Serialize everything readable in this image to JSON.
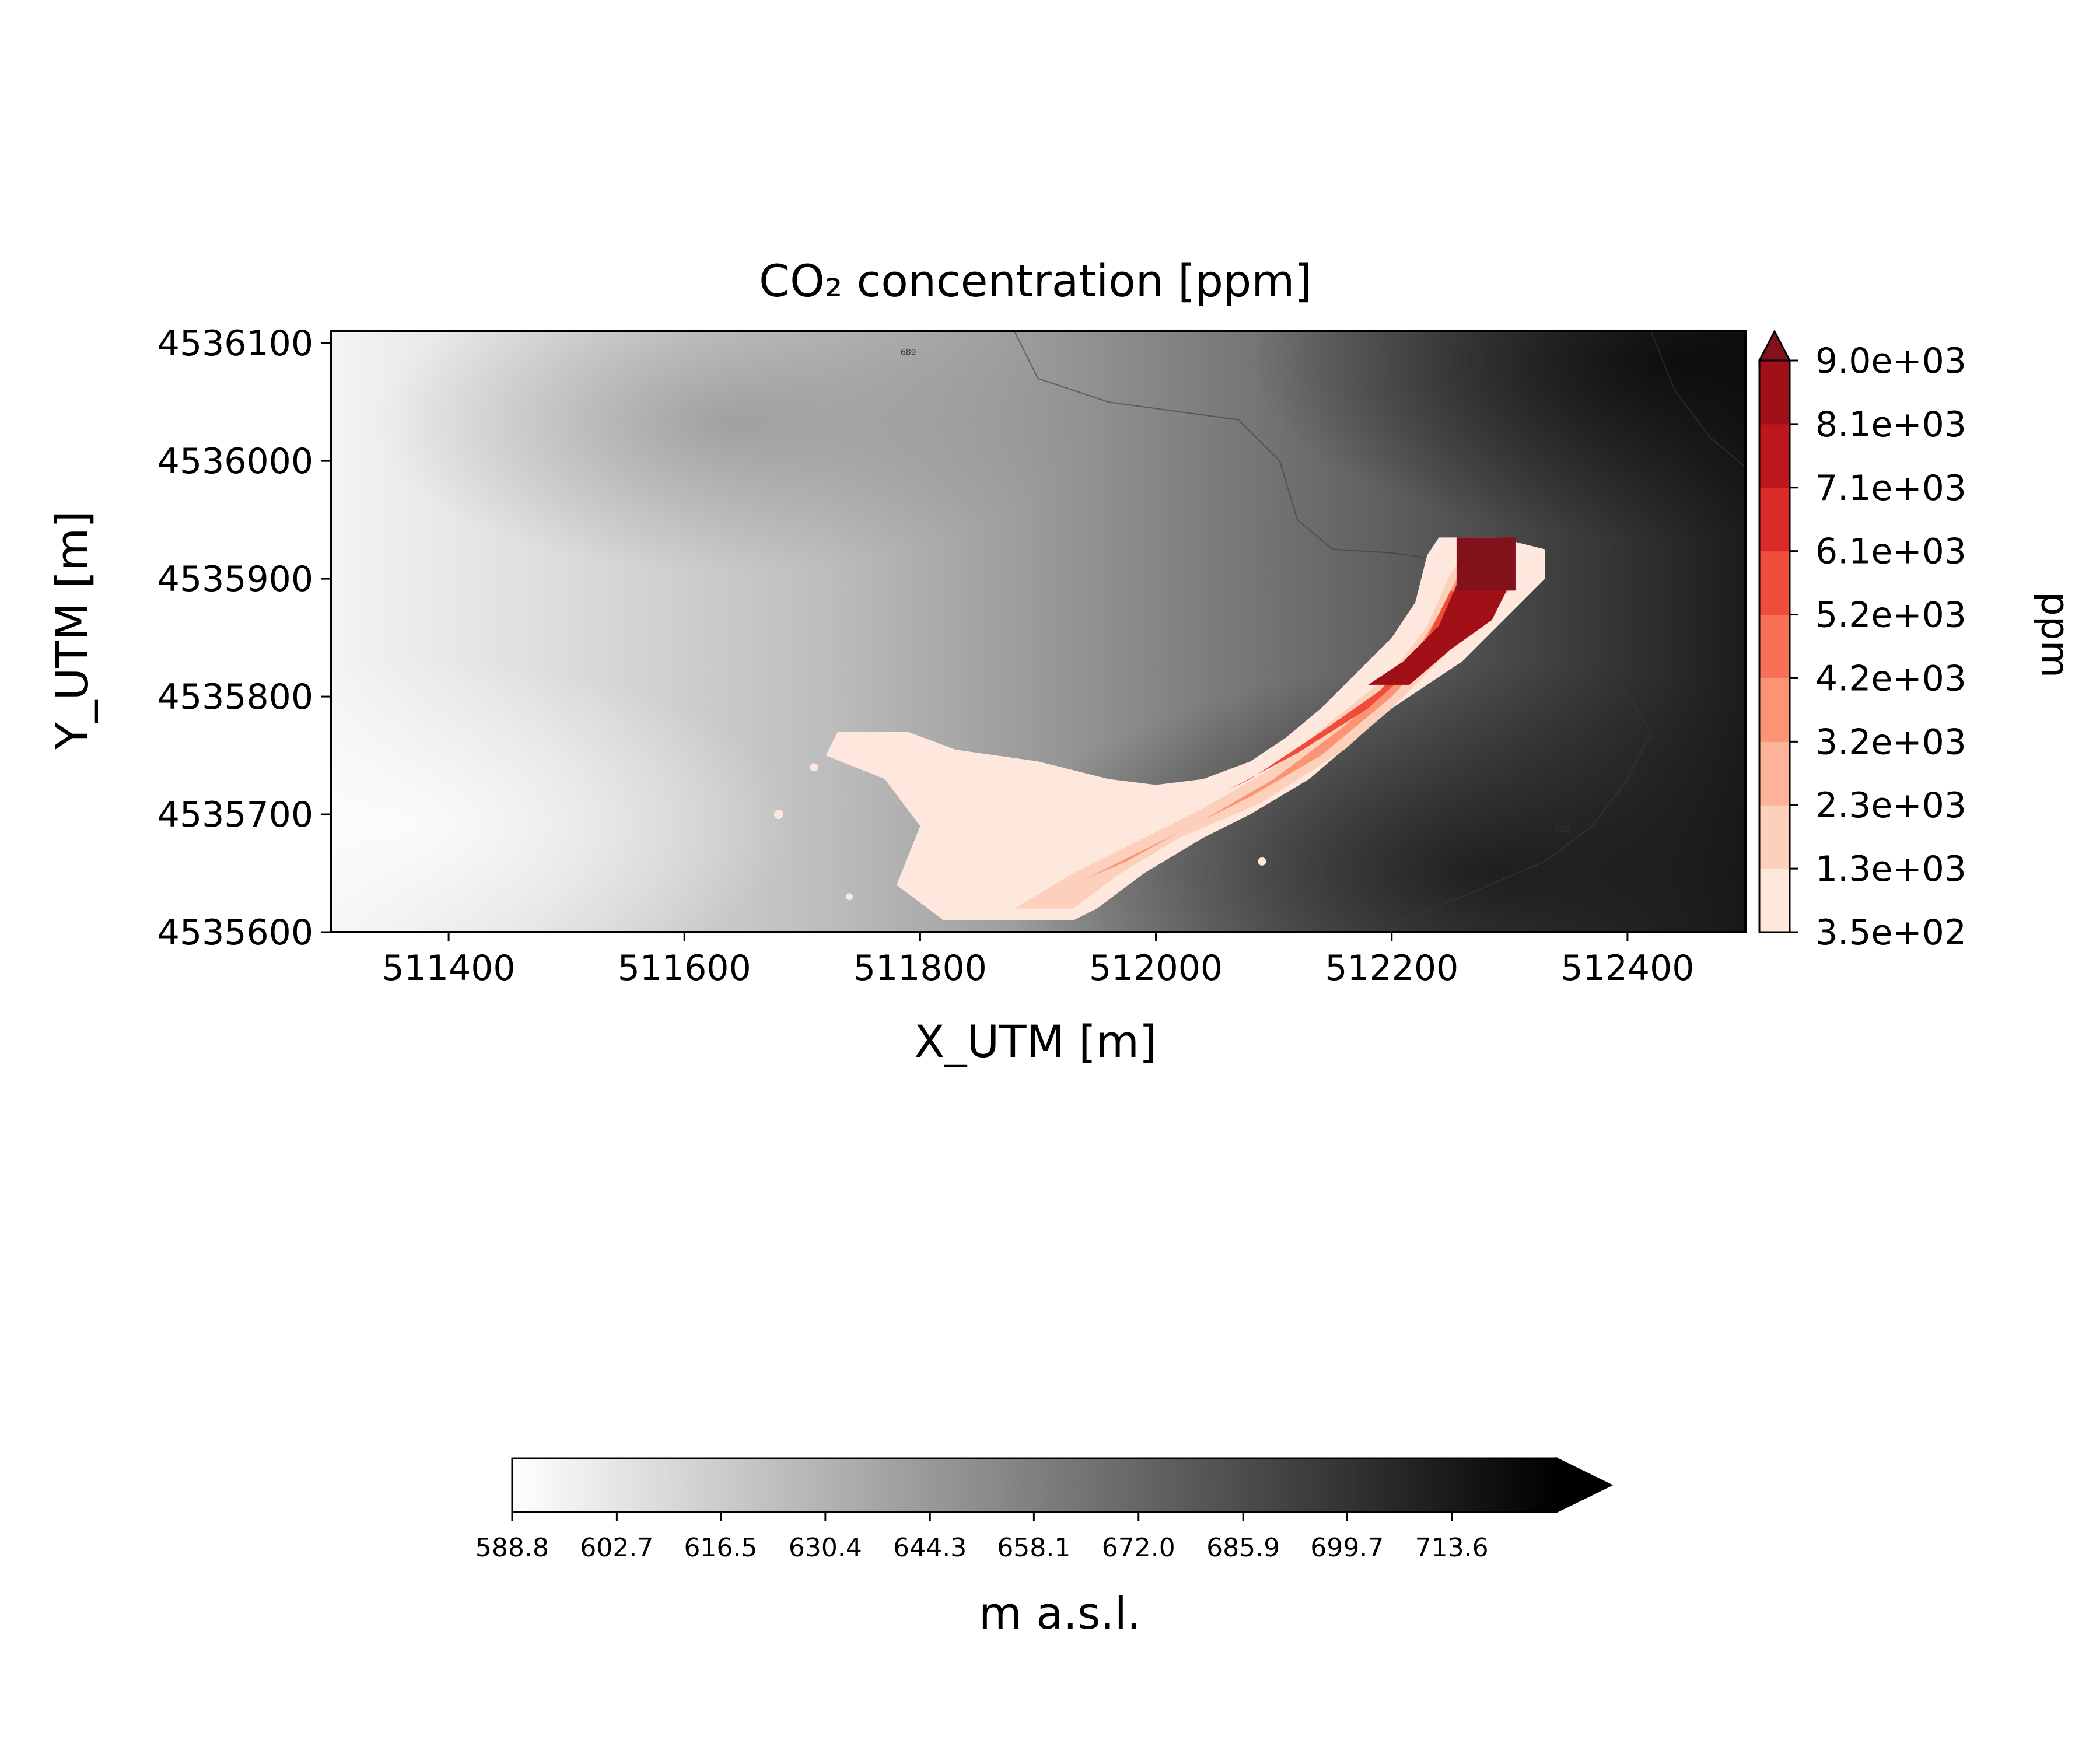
{
  "chart_data": {
    "type": "heatmap",
    "title": "CO₂ concentration [ppm]",
    "xlabel": "X_UTM [m]",
    "ylabel": "Y_UTM [m]",
    "xlim": [
      511300,
      512500
    ],
    "ylim": [
      4535600,
      4536110
    ],
    "x_ticks": [
      511400,
      511600,
      511800,
      512000,
      512200,
      512400
    ],
    "x_tick_labels": [
      "511400",
      "511600",
      "511800",
      "512000",
      "512200",
      "512400"
    ],
    "y_ticks": [
      4535600,
      4535700,
      4535800,
      4535900,
      4536000,
      4536100
    ],
    "y_tick_labels": [
      "4535600",
      "4535700",
      "4535800",
      "4535900",
      "4536000",
      "4536100"
    ],
    "grid": false,
    "contour_labels": [
      {
        "text": "689",
        "x": 511790,
        "y": 4536090
      },
      {
        "text": "689",
        "x": 512345,
        "y": 4535685
      }
    ],
    "co2_colorbar": {
      "label": "ppm",
      "levels": [
        350,
        1300,
        2300,
        3200,
        4200,
        5200,
        6100,
        7100,
        8100,
        9000
      ],
      "tick_labels": [
        "3.5e+02",
        "1.3e+03",
        "2.3e+03",
        "3.2e+03",
        "4.2e+03",
        "5.2e+03",
        "6.1e+03",
        "7.1e+03",
        "8.1e+03",
        "9.0e+03"
      ],
      "colors": [
        "#fee8de",
        "#fdd0bc",
        "#fcb398",
        "#fb9475",
        "#f87156",
        "#ef4c3a",
        "#db2b26",
        "#bd161d",
        "#a11017"
      ],
      "extend": "max",
      "extend_color": "#83111b"
    },
    "elevation_colorbar": {
      "label": "m a.s.l.",
      "min": 588.8,
      "max": 727.5,
      "ticks": [
        588.8,
        602.7,
        616.5,
        630.4,
        644.3,
        658.1,
        672.0,
        685.9,
        699.7,
        713.6
      ],
      "tick_labels": [
        "588.8",
        "602.7",
        "616.5",
        "630.4",
        "644.3",
        "658.1",
        "672.0",
        "685.9",
        "699.7",
        "713.6"
      ],
      "extend": "max"
    }
  }
}
